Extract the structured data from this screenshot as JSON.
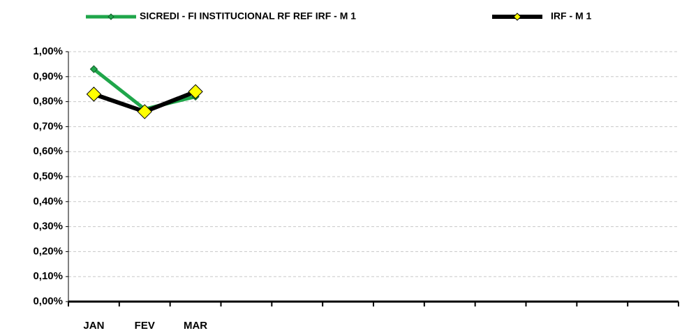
{
  "chart_data": {
    "type": "line",
    "categories": [
      "JAN",
      "FEV",
      "MAR",
      null,
      null,
      null,
      null,
      null,
      null,
      null,
      null,
      null
    ],
    "series": [
      {
        "name": "SICREDI - FI INSTITUCIONAL RF REF IRF - M 1",
        "color": "#1fa64a",
        "marker_color": "#1fa64a",
        "values": [
          0.93,
          0.77,
          0.82,
          null,
          null,
          null,
          null,
          null,
          null,
          null,
          null,
          null
        ]
      },
      {
        "name": "IRF - M 1",
        "color": "#000000",
        "marker_color": "#ffff00",
        "values": [
          0.83,
          0.76,
          0.84,
          null,
          null,
          null,
          null,
          null,
          null,
          null,
          null,
          null
        ]
      }
    ],
    "ylim": [
      0,
      1.0
    ],
    "yticks": [
      {
        "value": 0,
        "label": "0,00%"
      },
      {
        "value": 0.1,
        "label": "0,10%"
      },
      {
        "value": 0.2,
        "label": "0,20%"
      },
      {
        "value": 0.3,
        "label": "0,30%"
      },
      {
        "value": 0.4,
        "label": "0,40%"
      },
      {
        "value": 0.5,
        "label": "0,50%"
      },
      {
        "value": 0.6,
        "label": "0,60%"
      },
      {
        "value": 0.7,
        "label": "0,70%"
      },
      {
        "value": 0.8,
        "label": "0,80%"
      },
      {
        "value": 0.9,
        "label": "0,90%"
      },
      {
        "value": 1.0,
        "label": "1,00%"
      }
    ],
    "grid": true,
    "legend": "top"
  }
}
